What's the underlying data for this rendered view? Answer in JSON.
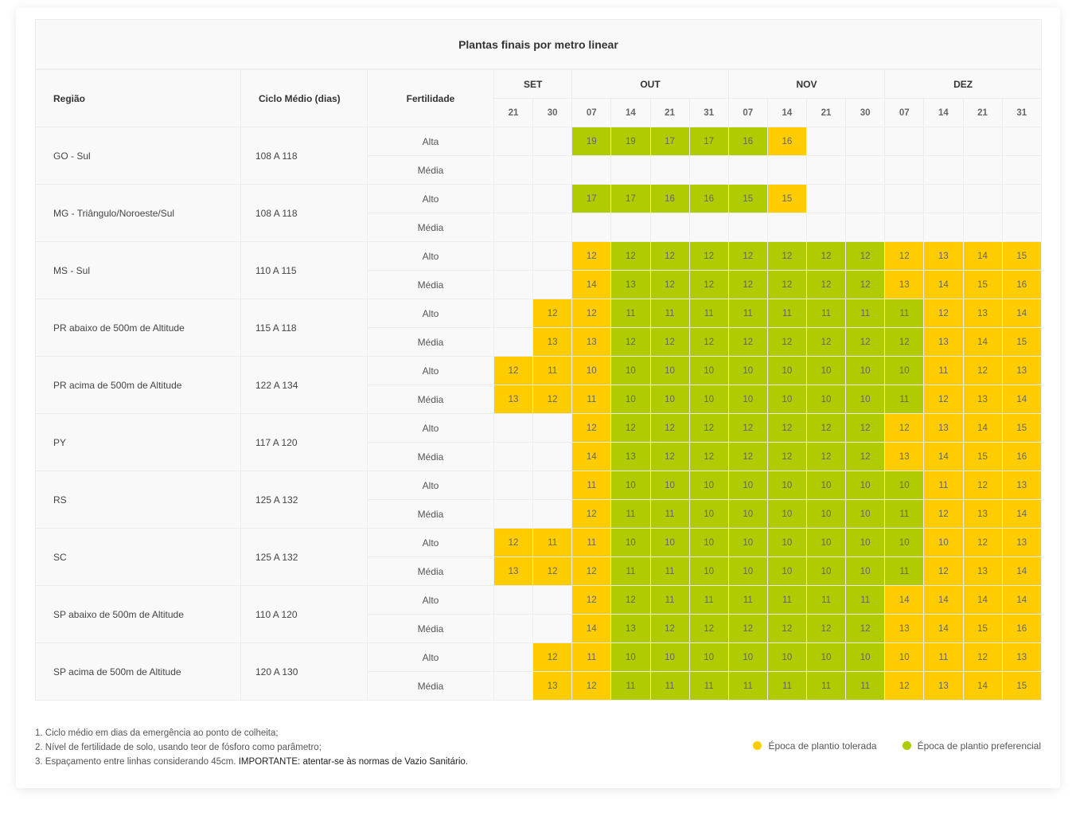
{
  "title": "Plantas finais por metro linear",
  "headers": {
    "region": "Região",
    "cycle": "Ciclo Médio (dias)",
    "fertility": "Fertilidade"
  },
  "months": [
    {
      "label": "SET",
      "span": 2
    },
    {
      "label": "OUT",
      "span": 4
    },
    {
      "label": "NOV",
      "span": 4
    },
    {
      "label": "DEZ",
      "span": 4
    }
  ],
  "dates": [
    "21",
    "30",
    "07",
    "14",
    "21",
    "31",
    "07",
    "14",
    "21",
    "30",
    "07",
    "14",
    "21",
    "31"
  ],
  "colors": {
    "T": "#ffcc00",
    "P": "#b0cb00"
  },
  "regions": [
    {
      "name": "GO - Sul",
      "cycle": "108 A 118",
      "rows": [
        {
          "fert": "Alta",
          "cells": [
            "",
            "",
            "P19",
            "P19",
            "P17",
            "P17",
            "P16",
            "T16",
            "",
            "",
            "",
            "",
            "",
            ""
          ]
        },
        {
          "fert": "Média",
          "cells": [
            "",
            "",
            "",
            "",
            "",
            "",
            "",
            "",
            "",
            "",
            "",
            "",
            "",
            ""
          ]
        }
      ]
    },
    {
      "name": "MG - Triângulo/Noroeste/Sul",
      "cycle": "108 A 118",
      "rows": [
        {
          "fert": "Alto",
          "cells": [
            "",
            "",
            "P17",
            "P17",
            "P16",
            "P16",
            "P15",
            "T15",
            "",
            "",
            "",
            "",
            "",
            ""
          ]
        },
        {
          "fert": "Média",
          "cells": [
            "",
            "",
            "",
            "",
            "",
            "",
            "",
            "",
            "",
            "",
            "",
            "",
            "",
            ""
          ]
        }
      ]
    },
    {
      "name": "MS - Sul",
      "cycle": "110 A 115",
      "rows": [
        {
          "fert": "Alto",
          "cells": [
            "",
            "",
            "T12",
            "P12",
            "P12",
            "P12",
            "P12",
            "P12",
            "P12",
            "P12",
            "T12",
            "T13",
            "T14",
            "T15"
          ]
        },
        {
          "fert": "Média",
          "cells": [
            "",
            "",
            "T14",
            "P13",
            "P12",
            "P12",
            "P12",
            "P12",
            "P12",
            "P12",
            "T13",
            "T14",
            "T15",
            "T16"
          ]
        }
      ]
    },
    {
      "name": "PR abaixo de 500m de Altitude",
      "cycle": "115 A 118",
      "rows": [
        {
          "fert": "Alto",
          "cells": [
            "",
            "T12",
            "T12",
            "P11",
            "P11",
            "P11",
            "P11",
            "P11",
            "P11",
            "P11",
            "P11",
            "T12",
            "T13",
            "T14"
          ]
        },
        {
          "fert": "Média",
          "cells": [
            "",
            "T13",
            "T13",
            "P12",
            "P12",
            "P12",
            "P12",
            "P12",
            "P12",
            "P12",
            "P12",
            "T13",
            "T14",
            "T15"
          ]
        }
      ]
    },
    {
      "name": "PR acima de 500m de Altitude",
      "cycle": "122 A 134",
      "rows": [
        {
          "fert": "Alto",
          "cells": [
            "T12",
            "T11",
            "T10",
            "P10",
            "P10",
            "P10",
            "P10",
            "P10",
            "P10",
            "P10",
            "P10",
            "T11",
            "T12",
            "T13"
          ]
        },
        {
          "fert": "Média",
          "cells": [
            "T13",
            "T12",
            "T11",
            "P10",
            "P10",
            "P10",
            "P10",
            "P10",
            "P10",
            "P10",
            "P11",
            "T12",
            "T13",
            "T14"
          ]
        }
      ]
    },
    {
      "name": "PY",
      "cycle": "117 A 120",
      "rows": [
        {
          "fert": "Alto",
          "cells": [
            "",
            "",
            "T12",
            "P12",
            "P12",
            "P12",
            "P12",
            "P12",
            "P12",
            "P12",
            "T12",
            "T13",
            "T14",
            "T15"
          ]
        },
        {
          "fert": "Média",
          "cells": [
            "",
            "",
            "T14",
            "P13",
            "P12",
            "P12",
            "P12",
            "P12",
            "P12",
            "P12",
            "T13",
            "T14",
            "T15",
            "T16"
          ]
        }
      ]
    },
    {
      "name": "RS",
      "cycle": "125 A 132",
      "rows": [
        {
          "fert": "Alto",
          "cells": [
            "",
            "",
            "T11",
            "P10",
            "P10",
            "P10",
            "P10",
            "P10",
            "P10",
            "P10",
            "P10",
            "T11",
            "T12",
            "T13"
          ]
        },
        {
          "fert": "Média",
          "cells": [
            "",
            "",
            "T12",
            "P11",
            "P11",
            "P10",
            "P10",
            "P10",
            "P10",
            "P10",
            "P11",
            "T12",
            "T13",
            "T14"
          ]
        }
      ]
    },
    {
      "name": "SC",
      "cycle": "125 A 132",
      "rows": [
        {
          "fert": "Alto",
          "cells": [
            "T12",
            "T11",
            "T11",
            "P10",
            "P10",
            "P10",
            "P10",
            "P10",
            "P10",
            "P10",
            "P10",
            "T10",
            "T12",
            "T13"
          ]
        },
        {
          "fert": "Média",
          "cells": [
            "T13",
            "T12",
            "T12",
            "P11",
            "P11",
            "P10",
            "P10",
            "P10",
            "P10",
            "P10",
            "P11",
            "T12",
            "T13",
            "T14"
          ]
        }
      ]
    },
    {
      "name": "SP abaixo de 500m de Altitude",
      "cycle": "110 A 120",
      "rows": [
        {
          "fert": "Alto",
          "cells": [
            "",
            "",
            "T12",
            "P12",
            "P11",
            "P11",
            "P11",
            "P11",
            "P11",
            "P11",
            "T14",
            "T14",
            "T14",
            "T14"
          ]
        },
        {
          "fert": "Média",
          "cells": [
            "",
            "",
            "T14",
            "P13",
            "P12",
            "P12",
            "P12",
            "P12",
            "P12",
            "P12",
            "T13",
            "T14",
            "T15",
            "T16"
          ]
        }
      ]
    },
    {
      "name": "SP acima de 500m de Altitude",
      "cycle": "120 A 130",
      "rows": [
        {
          "fert": "Alto",
          "cells": [
            "",
            "T12",
            "T11",
            "P10",
            "P10",
            "P10",
            "P10",
            "P10",
            "P10",
            "P10",
            "T10",
            "T11",
            "T12",
            "T13"
          ]
        },
        {
          "fert": "Média",
          "cells": [
            "",
            "T13",
            "T12",
            "P11",
            "P11",
            "P11",
            "P11",
            "P11",
            "P11",
            "P11",
            "T12",
            "T13",
            "T14",
            "T15"
          ]
        }
      ]
    }
  ],
  "notes": {
    "n1": "1. Ciclo médio em dias da emergência ao ponto de colheita;",
    "n2": "2. Nível de fertilidade de solo, usando teor de fósforo como parâmetro;",
    "n3": "3. Espaçamento entre linhas considerando 45cm.",
    "n3_important": "IMPORTANTE: atentar-se às normas de Vazio Sanitário."
  },
  "legend": {
    "tolerated": "Época de plantio tolerada",
    "preferred": "Época de plantio preferencial"
  }
}
